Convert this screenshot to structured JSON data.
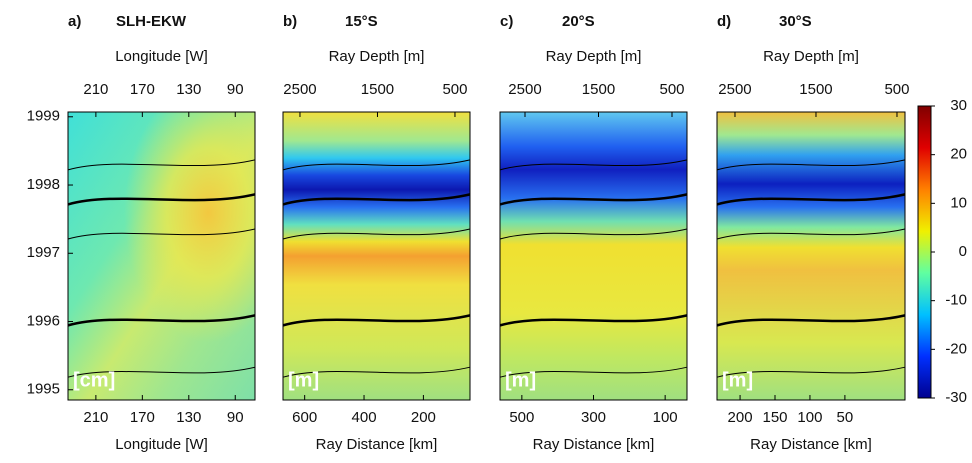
{
  "chart_data": [
    {
      "type": "heatmap",
      "label": "a)",
      "title": "SLH-EKW",
      "x2_label": "Longitude [W]",
      "x2lim": [
        234,
        73
      ],
      "x2ticks": [
        210,
        170,
        130,
        90
      ],
      "x_label": "Longitude [W]",
      "xlim": [
        234,
        73
      ],
      "xticks": [
        210,
        170,
        130,
        90
      ],
      "ylim": [
        1994.85,
        1999.07
      ],
      "yticks": [
        1995,
        1996,
        1997,
        1998,
        1999
      ],
      "unit_label": "[cm]"
    },
    {
      "type": "heatmap",
      "label": "b)",
      "title": "15°S",
      "x2_label": "Ray Depth [m]",
      "x2lim": [
        2719,
        306
      ],
      "x2ticks": [
        2500,
        1500,
        500
      ],
      "x_label": "Ray Distance [km]",
      "xlim": [
        673,
        43
      ],
      "xticks": [
        600,
        400,
        200
      ],
      "ylim": [
        1994.85,
        1999.07
      ],
      "unit_label": "[m]"
    },
    {
      "type": "heatmap",
      "label": "c)",
      "title": "20°S",
      "x2_label": "Ray Depth [m]",
      "x2lim": [
        2840,
        296
      ],
      "x2ticks": [
        2500,
        1500,
        500
      ],
      "x_label": "Ray Distance [km]",
      "xlim": [
        561,
        39
      ],
      "xticks": [
        500,
        300,
        100
      ],
      "ylim": [
        1994.85,
        1999.07
      ],
      "unit_label": "[m]"
    },
    {
      "type": "heatmap",
      "label": "d)",
      "title": "30°S",
      "x2_label": "Ray Depth [m]",
      "x2lim": [
        2722,
        401
      ],
      "x2ticks": [
        2500,
        1500,
        500
      ],
      "x_label": "Ray Distance [km]",
      "xlim": [
        233,
        -36
      ],
      "xticks": [
        200,
        150,
        100,
        50
      ],
      "ylim": [
        1994.85,
        1999.07
      ],
      "unit_label": "[m]"
    },
    {
      "type": "colorbar",
      "ylim": [
        -30,
        30
      ],
      "yticks": [
        30,
        20,
        10,
        0,
        -10,
        -20,
        -30
      ],
      "colors": [
        "#00008f",
        "#0030ff",
        "#00c0ff",
        "#60ffa0",
        "#f0f000",
        "#ff8000",
        "#e00000",
        "#800000"
      ]
    }
  ]
}
